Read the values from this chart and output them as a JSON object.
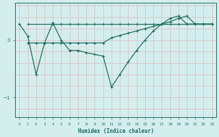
{
  "xlabel": "Humidex (Indice chaleur)",
  "bg_color": "#d4eeee",
  "line_color": "#1a6b5a",
  "grid_color_v": "#c8d8d8",
  "grid_color_h": "#ddb8b8",
  "xlim": [
    -0.5,
    23.5
  ],
  "ylim": [
    -1.35,
    0.65
  ],
  "yticks": [
    0,
    -1
  ],
  "xticks": [
    0,
    1,
    2,
    3,
    4,
    5,
    6,
    7,
    8,
    9,
    10,
    11,
    12,
    13,
    14,
    15,
    16,
    17,
    18,
    19,
    20,
    21,
    22,
    23
  ],
  "line1_x": [
    1,
    4,
    5,
    6,
    7,
    8,
    9,
    10,
    11,
    12,
    13,
    14,
    15,
    16,
    17,
    18,
    19,
    20,
    21,
    22,
    23
  ],
  "line1_y": [
    0.28,
    0.28,
    0.28,
    0.28,
    0.28,
    0.28,
    0.28,
    0.28,
    0.28,
    0.28,
    0.28,
    0.28,
    0.28,
    0.28,
    0.28,
    0.28,
    0.28,
    0.28,
    0.28,
    0.28,
    0.28
  ],
  "line2_x": [
    1,
    2,
    3,
    4,
    5,
    6,
    7,
    8,
    9,
    10,
    11,
    12,
    13,
    14,
    15,
    16,
    17,
    18,
    19,
    20,
    21,
    22,
    23
  ],
  "line2_y": [
    -0.05,
    -0.05,
    -0.05,
    -0.05,
    -0.05,
    -0.05,
    -0.05,
    -0.05,
    -0.05,
    -0.05,
    0.04,
    0.08,
    0.12,
    0.16,
    0.2,
    0.24,
    0.28,
    0.32,
    0.38,
    0.42,
    0.28,
    0.28,
    0.28
  ],
  "line3_x": [
    0,
    1,
    2,
    3,
    4,
    5,
    6,
    7,
    8,
    9,
    10,
    11,
    12,
    13,
    14,
    15,
    16,
    17,
    18,
    19,
    20,
    21,
    22,
    23
  ],
  "line3_y": [
    0.28,
    0.07,
    -0.6,
    -0.05,
    0.3,
    0.0,
    -0.18,
    -0.18,
    -0.22,
    -0.25,
    -0.28,
    -0.82,
    -0.6,
    -0.38,
    -0.18,
    0.0,
    0.16,
    0.28,
    0.38,
    0.42,
    0.28,
    0.28,
    0.28,
    0.28
  ]
}
